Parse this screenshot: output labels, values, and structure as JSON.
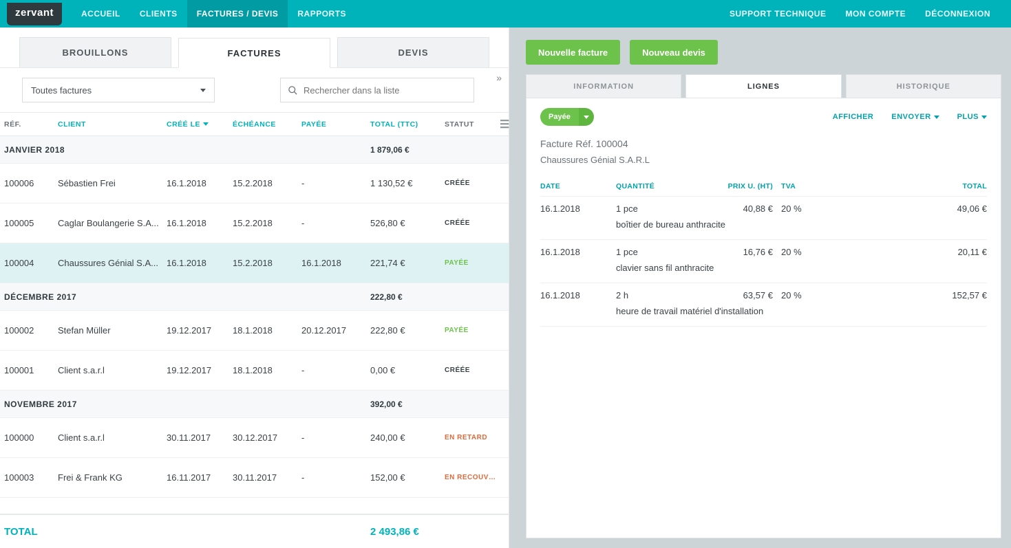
{
  "brand": "zervant",
  "nav": {
    "accueil": "ACCUEIL",
    "clients": "CLIENTS",
    "factures_devis": "FACTURES / DEVIS",
    "rapports": "RAPPORTS",
    "support": "SUPPORT TECHNIQUE",
    "mon_compte": "MON COMPTE",
    "deconnexion": "DÉCONNEXION"
  },
  "tabs": {
    "brouillons": "BROUILLONS",
    "factures": "FACTURES",
    "devis": "DEVIS"
  },
  "filter": {
    "select_label": "Toutes factures",
    "search_placeholder": "Rechercher dans la liste"
  },
  "columns": {
    "ref": "RÉF.",
    "client": "CLIENT",
    "cree_le": "CRÉÉ LE",
    "echeance": "ÉCHÉANCE",
    "payee": "PAYÉE",
    "total_ttc": "TOTAL (TTC)",
    "statut": "STATUT"
  },
  "groups": [
    {
      "label": "JANVIER 2018",
      "subtotal": "1 879,06 €",
      "rows": [
        {
          "ref": "100006",
          "client": "Sébastien Frei",
          "created": "16.1.2018",
          "due": "15.2.2018",
          "paid": "-",
          "total": "1 130,52 €",
          "status": "CRÉÉE",
          "status_class": "status-creee",
          "selected": false
        },
        {
          "ref": "100005",
          "client": "Caglar Boulangerie S.A...",
          "created": "16.1.2018",
          "due": "15.2.2018",
          "paid": "-",
          "total": "526,80 €",
          "status": "CRÉÉE",
          "status_class": "status-creee",
          "selected": false
        },
        {
          "ref": "100004",
          "client": "Chaussures Génial S.A...",
          "created": "16.1.2018",
          "due": "15.2.2018",
          "paid": "16.1.2018",
          "total": "221,74 €",
          "status": "PAYÉE",
          "status_class": "status-payee",
          "selected": true
        }
      ]
    },
    {
      "label": "DÉCEMBRE 2017",
      "subtotal": "222,80 €",
      "rows": [
        {
          "ref": "100002",
          "client": "Stefan Müller",
          "created": "19.12.2017",
          "due": "18.1.2018",
          "paid": "20.12.2017",
          "total": "222,80 €",
          "status": "PAYÉE",
          "status_class": "status-payee",
          "selected": false
        },
        {
          "ref": "100001",
          "client": "Client s.a.r.l",
          "created": "19.12.2017",
          "due": "18.1.2018",
          "paid": "-",
          "total": "0,00 €",
          "status": "CRÉÉE",
          "status_class": "status-creee",
          "selected": false
        }
      ]
    },
    {
      "label": "NOVEMBRE 2017",
      "subtotal": "392,00 €",
      "rows": [
        {
          "ref": "100000",
          "client": "Client s.a.r.l",
          "created": "30.11.2017",
          "due": "30.12.2017",
          "paid": "-",
          "total": "240,00 €",
          "status": "EN RETARD",
          "status_class": "status-retard",
          "selected": false
        },
        {
          "ref": "100003",
          "client": "Frei & Frank KG",
          "created": "16.11.2017",
          "due": "30.11.2017",
          "paid": "-",
          "total": "152,00 €",
          "status": "EN RECOUVRE...",
          "status_class": "status-recouv",
          "selected": false
        }
      ]
    }
  ],
  "footer": {
    "label": "TOTAL",
    "value": "2 493,86 €"
  },
  "actions": {
    "nouvelle_facture": "Nouvelle facture",
    "nouveau_devis": "Nouveau devis"
  },
  "detail_tabs": {
    "information": "INFORMATION",
    "lignes": "LIGNES",
    "historique": "HISTORIQUE"
  },
  "detail": {
    "badge": "Payée",
    "afficher": "AFFICHER",
    "envoyer": "ENVOYER",
    "plus": "PLUS",
    "title": "Facture Réf. 100004",
    "subtitle": "Chaussures Génial S.A.R.L",
    "line_columns": {
      "date": "DATE",
      "quantite": "QUANTITÉ",
      "prix_u_ht": "PRIX U. (HT)",
      "tva": "TVA",
      "total": "TOTAL"
    },
    "lines": [
      {
        "date": "16.1.2018",
        "qty": "1 pce",
        "unit": "40,88 €",
        "tva": "20 %",
        "total": "49,06 €",
        "desc": "boîtier de bureau anthracite"
      },
      {
        "date": "16.1.2018",
        "qty": "1 pce",
        "unit": "16,76 €",
        "tva": "20 %",
        "total": "20,11 €",
        "desc": "clavier sans fil anthracite"
      },
      {
        "date": "16.1.2018",
        "qty": "2 h",
        "unit": "63,57 €",
        "tva": "20 %",
        "total": "152,57 €",
        "desc": "heure de travail matériel d'installation"
      }
    ]
  },
  "colors": {
    "primary": "#00b3bb",
    "primary_dark": "#009ba3",
    "green": "#6cc24a",
    "green_dark": "#5eb63f",
    "text": "#3a4246",
    "muted": "#6a7277",
    "border": "#e5e9eb",
    "row_selected": "#def2f4",
    "right_bg": "#cdd4d7",
    "warn": "#e06a3c"
  }
}
